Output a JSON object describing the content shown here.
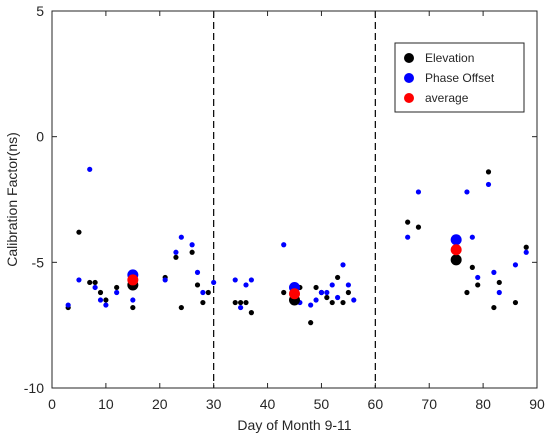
{
  "chart_data": {
    "type": "scatter",
    "xlabel": "Day of Month 9-11",
    "ylabel": "Calibration Factor(ns)",
    "xlim": [
      0,
      90
    ],
    "ylim": [
      -10,
      5
    ],
    "xticks": [
      0,
      10,
      20,
      30,
      40,
      50,
      60,
      70,
      80,
      90
    ],
    "yticks": [
      5,
      0,
      -5,
      -10
    ],
    "grid": false,
    "legend_position": "top-right",
    "vlines": [
      30,
      60
    ],
    "series": [
      {
        "name": "Elevation",
        "color": "#000000",
        "points": [
          [
            3,
            -6.8
          ],
          [
            5,
            -3.8
          ],
          [
            7,
            -5.8
          ],
          [
            8,
            -5.8
          ],
          [
            9,
            -6.2
          ],
          [
            10,
            -6.5
          ],
          [
            12,
            -6.0
          ],
          [
            15,
            -6.8
          ],
          [
            21,
            -5.6
          ],
          [
            23,
            -4.8
          ],
          [
            24,
            -6.8
          ],
          [
            26,
            -4.6
          ],
          [
            27,
            -5.9
          ],
          [
            28,
            -6.6
          ],
          [
            29,
            -6.2
          ],
          [
            34,
            -6.6
          ],
          [
            35,
            -6.6
          ],
          [
            36,
            -6.6
          ],
          [
            37,
            -7.0
          ],
          [
            43,
            -6.2
          ],
          [
            46,
            -6.0
          ],
          [
            48,
            -7.4
          ],
          [
            49,
            -6.0
          ],
          [
            50,
            -6.2
          ],
          [
            51,
            -6.4
          ],
          [
            52,
            -6.6
          ],
          [
            53,
            -5.6
          ],
          [
            54,
            -6.6
          ],
          [
            55,
            -6.2
          ],
          [
            66,
            -3.4
          ],
          [
            68,
            -3.6
          ],
          [
            77,
            -6.2
          ],
          [
            78,
            -5.2
          ],
          [
            79,
            -5.9
          ],
          [
            81,
            -1.4
          ],
          [
            82,
            -6.8
          ],
          [
            83,
            -5.8
          ],
          [
            86,
            -6.6
          ],
          [
            88,
            -4.4
          ]
        ],
        "large_points": [
          [
            15,
            -5.9
          ],
          [
            45,
            -6.5
          ],
          [
            75,
            -4.9
          ]
        ]
      },
      {
        "name": "Phase Offset",
        "color": "#0000ff",
        "points": [
          [
            3,
            -6.7
          ],
          [
            5,
            -5.7
          ],
          [
            7,
            -1.3
          ],
          [
            8,
            -6.0
          ],
          [
            9,
            -6.5
          ],
          [
            10,
            -6.7
          ],
          [
            12,
            -6.2
          ],
          [
            15,
            -6.5
          ],
          [
            21,
            -5.7
          ],
          [
            23,
            -4.6
          ],
          [
            24,
            -4.0
          ],
          [
            26,
            -4.3
          ],
          [
            27,
            -5.4
          ],
          [
            28,
            -6.2
          ],
          [
            30,
            -5.8
          ],
          [
            34,
            -5.7
          ],
          [
            35,
            -6.8
          ],
          [
            36,
            -5.9
          ],
          [
            37,
            -5.7
          ],
          [
            43,
            -4.3
          ],
          [
            46,
            -6.6
          ],
          [
            48,
            -6.7
          ],
          [
            49,
            -6.5
          ],
          [
            50,
            -6.2
          ],
          [
            51,
            -6.2
          ],
          [
            52,
            -5.9
          ],
          [
            53,
            -6.4
          ],
          [
            54,
            -5.1
          ],
          [
            55,
            -5.9
          ],
          [
            56,
            -6.5
          ],
          [
            66,
            -4.0
          ],
          [
            68,
            -2.2
          ],
          [
            77,
            -2.2
          ],
          [
            78,
            -4.0
          ],
          [
            79,
            -5.6
          ],
          [
            81,
            -1.9
          ],
          [
            82,
            -5.4
          ],
          [
            83,
            -6.2
          ],
          [
            86,
            -5.1
          ],
          [
            88,
            -4.6
          ]
        ],
        "large_points": [
          [
            15,
            -5.5
          ],
          [
            45,
            -6.0
          ],
          [
            75,
            -4.1
          ]
        ]
      },
      {
        "name": "average",
        "color": "#ff0000",
        "points": [],
        "large_points": [
          [
            15,
            -5.7
          ],
          [
            45,
            -6.25
          ],
          [
            75,
            -4.5
          ]
        ]
      }
    ]
  }
}
